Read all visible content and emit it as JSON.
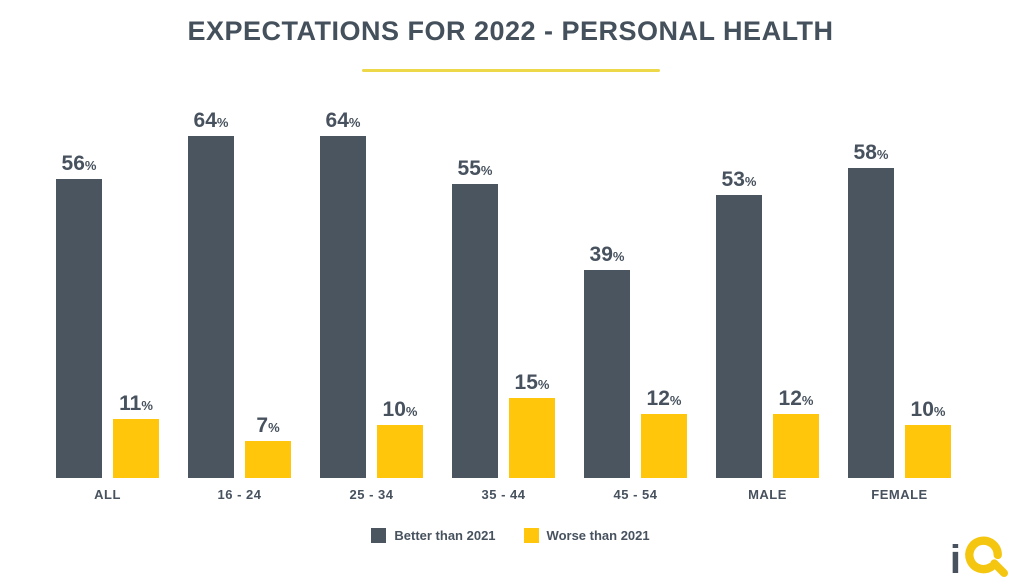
{
  "title": "EXPECTATIONS FOR 2022 - PERSONAL HEALTH",
  "colors": {
    "bar_dark": "#4A5560",
    "bar_yellow": "#FFC60B",
    "title_text": "#44505C",
    "label_text": "#47525E",
    "underline": "#EDD84A",
    "background": "#FFFFFF"
  },
  "chart_data": {
    "type": "bar",
    "title": "EXPECTATIONS FOR 2022 - PERSONAL HEALTH",
    "categories": [
      "ALL",
      "16 - 24",
      "25 - 34",
      "35 - 44",
      "45 - 54",
      "MALE",
      "FEMALE"
    ],
    "series": [
      {
        "name": "Better than 2021",
        "color": "#4A5560",
        "values": [
          56,
          64,
          64,
          55,
          39,
          53,
          58
        ]
      },
      {
        "name": "Worse than 2021",
        "color": "#FFC60B",
        "values": [
          11,
          7,
          10,
          15,
          12,
          12,
          10
        ]
      }
    ],
    "value_suffix": "%",
    "xlabel": "",
    "ylabel": "",
    "ylim": [
      0,
      64
    ],
    "grid": false,
    "data_labels": true,
    "legend_position": "bottom"
  },
  "legend": {
    "items": [
      {
        "label": "Better than 2021",
        "color": "#4A5560"
      },
      {
        "label": "Worse than 2021",
        "color": "#FFC60B"
      }
    ]
  },
  "logo": {
    "i": "i",
    "q": "Q",
    "name": "iQ"
  }
}
